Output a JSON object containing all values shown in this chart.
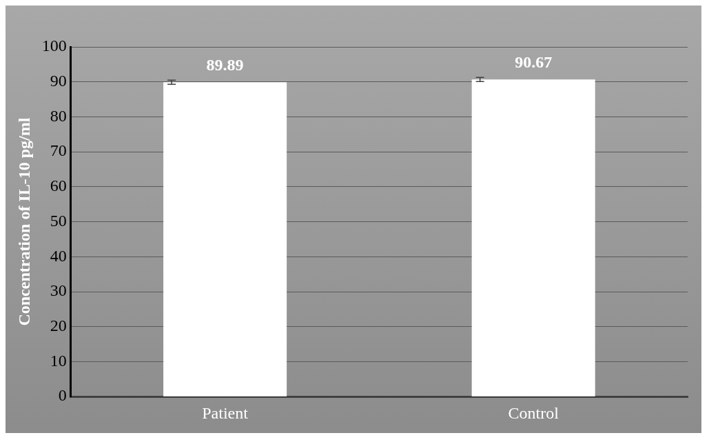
{
  "chart_data": {
    "type": "bar",
    "ylabel": "Concentration of IL-10 pg/ml",
    "categories": [
      "Patient",
      "Control"
    ],
    "values": [
      89.89,
      90.67
    ],
    "errors": [
      0.6,
      0.6
    ],
    "color": "#ffffff",
    "ylim": [
      0,
      100
    ],
    "yticks": [
      0,
      10,
      20,
      30,
      40,
      50,
      60,
      70,
      80,
      90,
      100
    ],
    "grid": "y",
    "data_labels": true
  }
}
